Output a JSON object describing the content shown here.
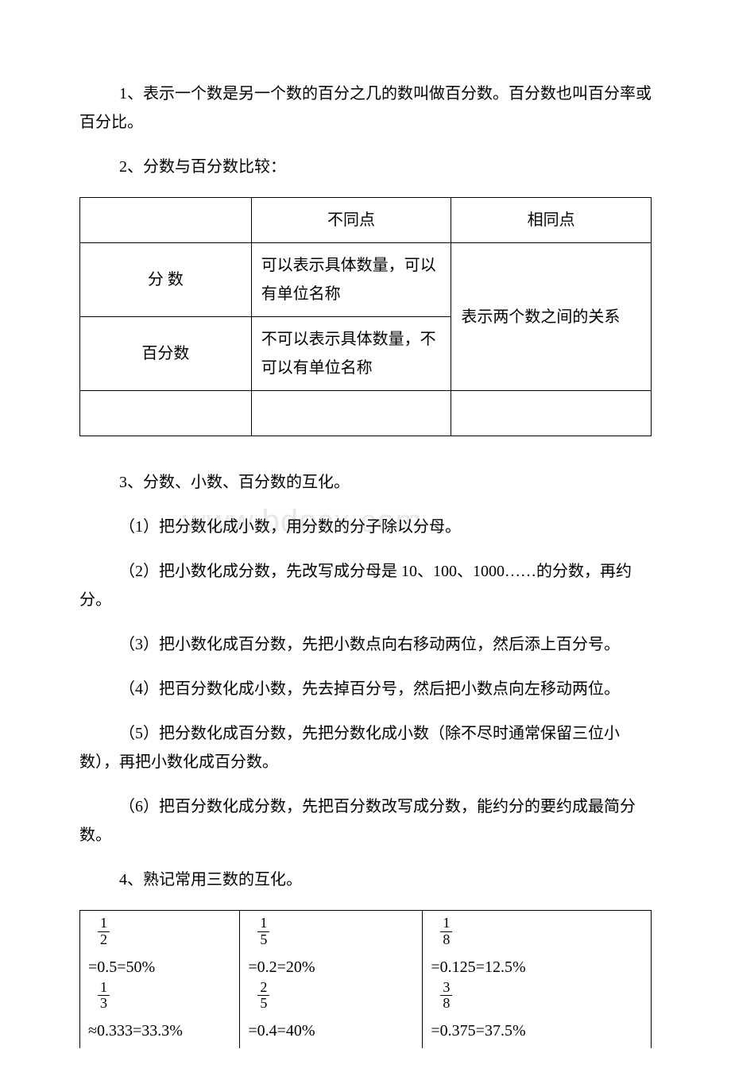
{
  "watermark": "www.bdocx.com",
  "p1": "1、表示一个数是另一个数的百分之几的数叫做百分数。百分数也叫百分率或百分比。",
  "p2": "2、分数与百分数比较：",
  "table1": {
    "h0": "",
    "h1": "不同点",
    "h2": "相同点",
    "r1c0": "分 数",
    "r1c1": "可以表示具体数量，可以有单位名称",
    "mergedRight": "表示两个数之间的关系",
    "r2c0": "百分数",
    "r2c1": "不可以表示具体数量，不可以有单位名称"
  },
  "p3": "3、分数、小数、百分数的互化。",
  "p4": "（1）把分数化成小数，用分数的分子除以分母。",
  "p5": "（2）把小数化成分数，先改写成分母是 10、100、1000……的分数，再约分。",
  "p6": "（3）把小数化成百分数，先把小数点向右移动两位，然后添上百分号。",
  "p7": "（4）把百分数化成小数，先去掉百分号，然后把小数点向左移动两位。",
  "p8": "（5）把分数化成百分数，先把分数化成小数（除不尽时通常保留三位小数），再把小数化成百分数。",
  "p9": "（6）把百分数化成分数，先把百分数改写成分数，能约分的要约成最简分数。",
  "p10": "4、熟记常用三数的互化。",
  "table2": {
    "cells": [
      {
        "fracNum": "1",
        "fracDen": "2",
        "eq": "=0.5=50%"
      },
      {
        "fracNum": "1",
        "fracDen": "5",
        "eq": "=0.2=20%"
      },
      {
        "fracNum": "1",
        "fracDen": "8",
        "eq": "=0.125=12.5%"
      },
      {
        "fracNum": "1",
        "fracDen": "3",
        "eq": "≈0.333=33.3%"
      },
      {
        "fracNum": "2",
        "fracDen": "5",
        "eq": "=0.4=40%"
      },
      {
        "fracNum": "3",
        "fracDen": "8",
        "eq": "=0.375=37.5%"
      }
    ]
  }
}
